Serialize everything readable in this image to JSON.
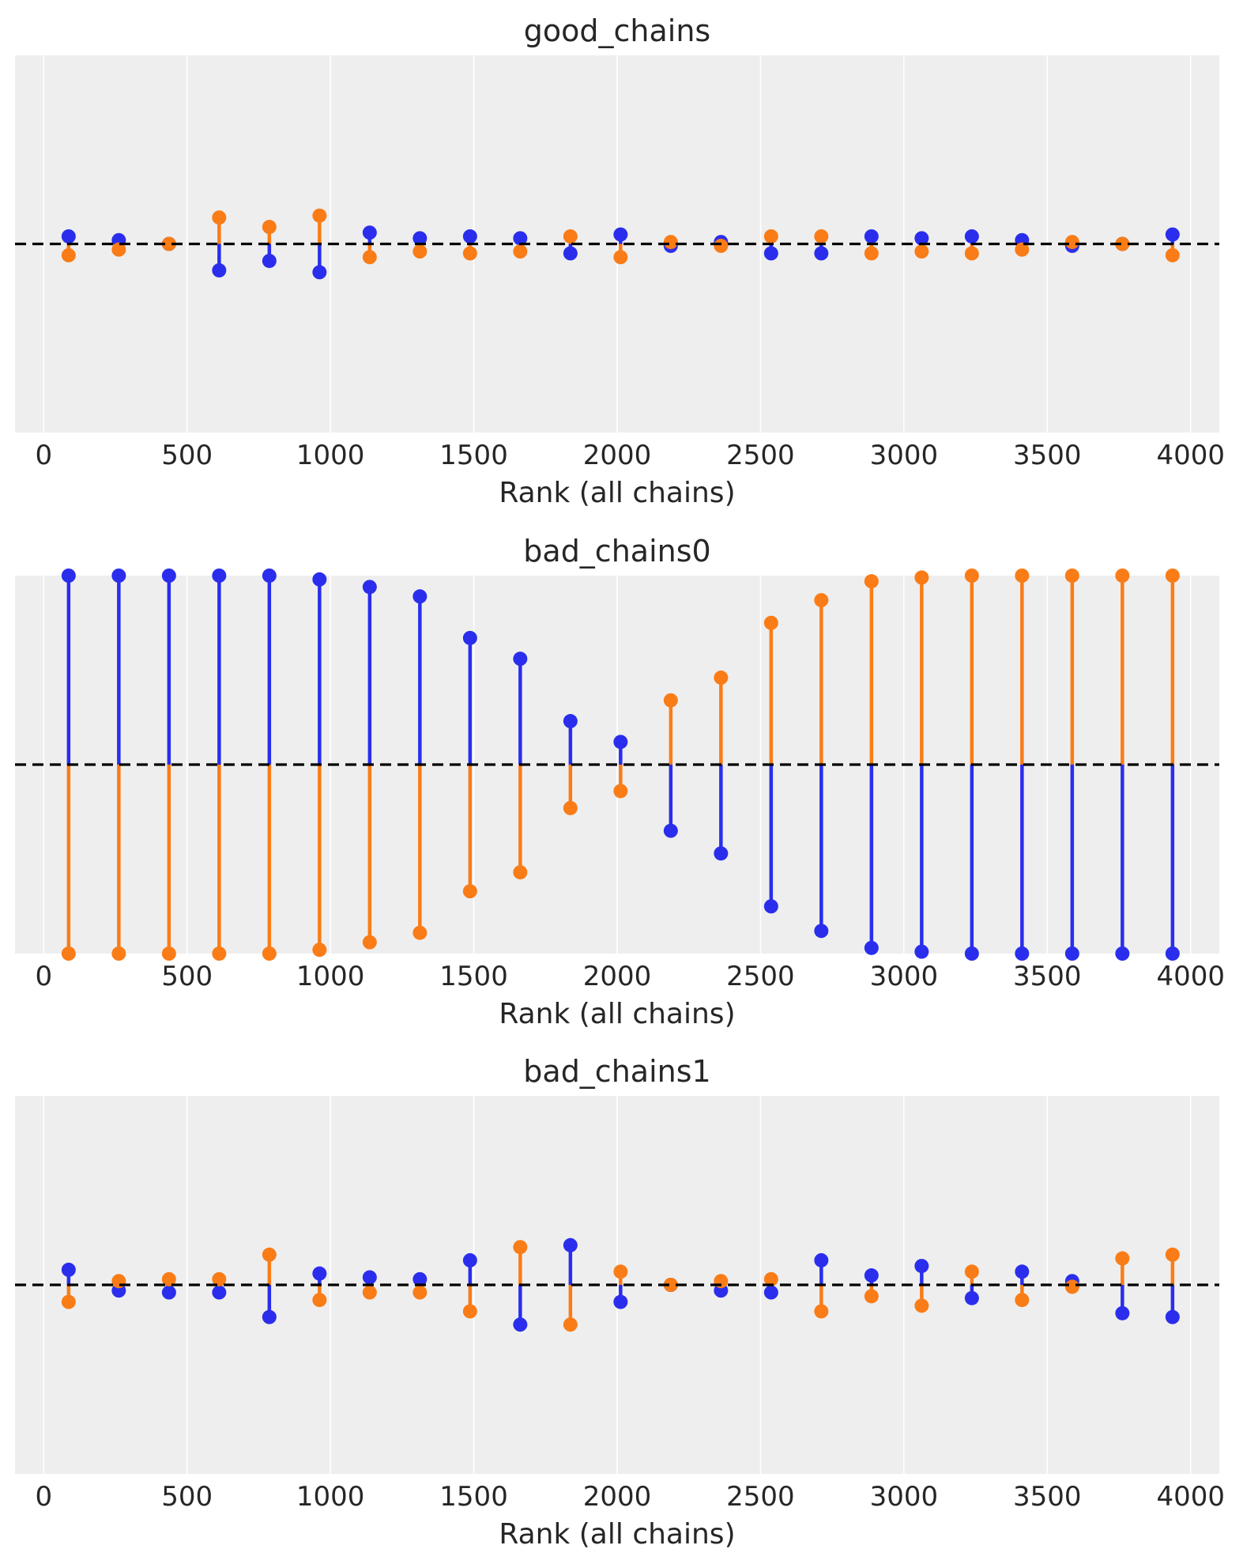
{
  "chart_data": [
    {
      "type": "lollipop",
      "title": "good_chains",
      "xlabel": "Rank (all chains)",
      "ylabel": "",
      "xlim": [
        -100,
        4100
      ],
      "ylim": [
        -1,
        1
      ],
      "xticks": [
        0,
        500,
        1000,
        1500,
        2000,
        2500,
        3000,
        3500,
        4000
      ],
      "xtick_labels": [
        "0",
        "500",
        "1000",
        "1500",
        "2000",
        "2500",
        "3000",
        "3500",
        "4000"
      ],
      "grid": true,
      "reference_line": 0,
      "x": [
        87,
        262,
        437,
        612,
        787,
        962,
        1137,
        1312,
        1487,
        1662,
        1837,
        2012,
        2187,
        2362,
        2537,
        2712,
        2887,
        3062,
        3237,
        3412,
        3587,
        3762,
        3937
      ],
      "series": [
        {
          "color": "#2a2eec",
          "values": [
            0.04,
            0.02,
            0.0,
            -0.14,
            -0.09,
            -0.15,
            0.06,
            0.03,
            0.04,
            0.03,
            -0.05,
            0.05,
            -0.01,
            0.01,
            -0.05,
            -0.05,
            0.04,
            0.03,
            0.04,
            0.02,
            -0.01,
            0.0,
            0.05
          ]
        },
        {
          "color": "#fa7c17",
          "values": [
            -0.06,
            -0.03,
            0.0,
            0.14,
            0.09,
            0.15,
            -0.07,
            -0.04,
            -0.05,
            -0.04,
            0.04,
            -0.07,
            0.01,
            -0.01,
            0.04,
            0.04,
            -0.05,
            -0.04,
            -0.05,
            -0.03,
            0.01,
            0.0,
            -0.06
          ]
        }
      ]
    },
    {
      "type": "lollipop",
      "title": "bad_chains0",
      "xlabel": "Rank (all chains)",
      "ylabel": "",
      "xlim": [
        -100,
        4100
      ],
      "ylim": [
        -1,
        1
      ],
      "xticks": [
        0,
        500,
        1000,
        1500,
        2000,
        2500,
        3000,
        3500,
        4000
      ],
      "xtick_labels": [
        "0",
        "500",
        "1000",
        "1500",
        "2000",
        "2500",
        "3000",
        "3500",
        "4000"
      ],
      "grid": true,
      "reference_line": 0,
      "x": [
        87,
        262,
        437,
        612,
        787,
        962,
        1137,
        1312,
        1487,
        1662,
        1837,
        2012,
        2187,
        2362,
        2537,
        2712,
        2887,
        3062,
        3237,
        3412,
        3587,
        3762,
        3937
      ],
      "series": [
        {
          "color": "#2a2eec",
          "values": [
            1.0,
            1.0,
            1.0,
            1.0,
            1.0,
            0.98,
            0.94,
            0.89,
            0.67,
            0.56,
            0.23,
            0.12,
            -0.35,
            -0.47,
            -0.75,
            -0.88,
            -0.97,
            -0.99,
            -1.0,
            -1.0,
            -1.0,
            -1.0,
            -1.0
          ]
        },
        {
          "color": "#fa7c17",
          "values": [
            -1.0,
            -1.0,
            -1.0,
            -1.0,
            -1.0,
            -0.98,
            -0.94,
            -0.89,
            -0.67,
            -0.57,
            -0.23,
            -0.14,
            0.34,
            0.46,
            0.75,
            0.87,
            0.97,
            0.99,
            1.0,
            1.0,
            1.0,
            1.0,
            1.0
          ]
        }
      ]
    },
    {
      "type": "lollipop",
      "title": "bad_chains1",
      "xlabel": "Rank (all chains)",
      "ylabel": "",
      "xlim": [
        -100,
        4100
      ],
      "ylim": [
        -1,
        1
      ],
      "xticks": [
        0,
        500,
        1000,
        1500,
        2000,
        2500,
        3000,
        3500,
        4000
      ],
      "xtick_labels": [
        "0",
        "500",
        "1000",
        "1500",
        "2000",
        "2500",
        "3000",
        "3500",
        "4000"
      ],
      "grid": true,
      "reference_line": 0,
      "x": [
        87,
        262,
        437,
        612,
        787,
        962,
        1137,
        1312,
        1487,
        1662,
        1837,
        2012,
        2187,
        2362,
        2537,
        2712,
        2887,
        3062,
        3237,
        3412,
        3587,
        3762,
        3937
      ],
      "series": [
        {
          "color": "#2a2eec",
          "values": [
            0.08,
            -0.03,
            -0.04,
            -0.04,
            -0.17,
            0.06,
            0.04,
            0.03,
            0.13,
            -0.21,
            0.21,
            -0.09,
            0.0,
            -0.03,
            -0.04,
            0.13,
            0.05,
            0.1,
            -0.07,
            0.07,
            0.02,
            -0.15,
            -0.17
          ]
        },
        {
          "color": "#fa7c17",
          "values": [
            -0.09,
            0.02,
            0.03,
            0.03,
            0.16,
            -0.08,
            -0.04,
            -0.04,
            -0.14,
            0.2,
            -0.21,
            0.07,
            0.0,
            0.02,
            0.03,
            -0.14,
            -0.06,
            -0.11,
            0.07,
            -0.08,
            -0.01,
            0.14,
            0.16
          ]
        }
      ]
    }
  ],
  "colors": {
    "panel_bg": "#eeeeee",
    "grid": "#ffffff",
    "text": "#262626",
    "reference_line": "#000000"
  }
}
